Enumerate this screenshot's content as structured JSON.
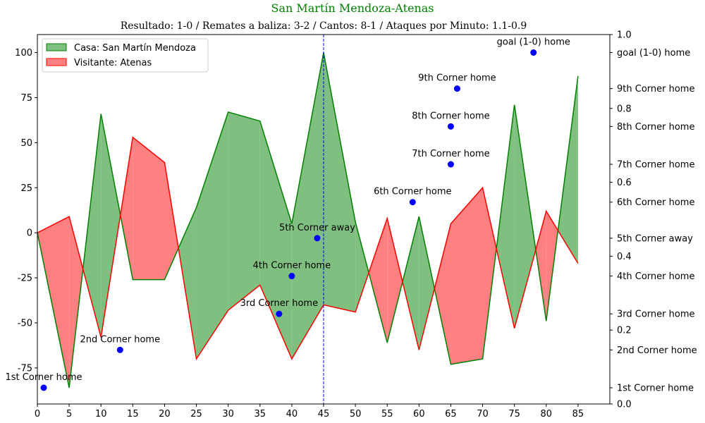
{
  "chart_data": {
    "type": "area",
    "title": "San Martín Mendoza-Atenas",
    "subtitle": "Resultado: 1-0 / Remates a baliza: 3-2 / Cantos: 8-1 / Ataques por Minuto: 1.1-0.9",
    "title_color": "#008000",
    "xlim": [
      0,
      90
    ],
    "ylim": [
      -95,
      110
    ],
    "x_ticks": [
      0,
      5,
      10,
      15,
      20,
      25,
      30,
      35,
      40,
      45,
      50,
      55,
      60,
      65,
      70,
      75,
      80,
      85
    ],
    "y_ticks": [
      -75,
      -50,
      -25,
      0,
      25,
      50,
      75,
      100
    ],
    "right_numeric_ticks": [
      "0.0",
      "0.2",
      "0.4",
      "0.6",
      "0.8",
      "1.0"
    ],
    "x": [
      0,
      5,
      10,
      15,
      20,
      25,
      30,
      35,
      40,
      45,
      50,
      55,
      60,
      65,
      70,
      75,
      80,
      85
    ],
    "series": [
      {
        "name": "Casa: San Martín Mendoza",
        "color": "#008000",
        "fill": "#7fbf7f",
        "values": [
          0,
          -86,
          66,
          -26,
          -26,
          14,
          67,
          62,
          5,
          100,
          6,
          -61,
          9,
          -73,
          -70,
          71,
          -49,
          87
        ]
      },
      {
        "name": "Visitante: Atenas",
        "color": "#ff0000",
        "fill": "#ff8080",
        "values": [
          0,
          9,
          -58,
          53,
          39,
          -70,
          -43,
          -29,
          -70,
          -40,
          -44,
          8,
          -65,
          5,
          25,
          -53,
          12,
          -17
        ]
      }
    ],
    "halftime_line": {
      "x": 45,
      "color": "#0000ff"
    },
    "events": [
      {
        "x": 1,
        "y": -86,
        "label": "1st Corner home"
      },
      {
        "x": 13,
        "y": -65,
        "label": "2nd Corner home"
      },
      {
        "x": 38,
        "y": -45,
        "label": "3rd Corner home"
      },
      {
        "x": 40,
        "y": -24,
        "label": "4th Corner home"
      },
      {
        "x": 44,
        "y": -3,
        "label": "5th Corner away"
      },
      {
        "x": 59,
        "y": 17,
        "label": "6th Corner home"
      },
      {
        "x": 65,
        "y": 38,
        "label": "7th Corner home"
      },
      {
        "x": 65,
        "y": 59,
        "label": "8th Corner home"
      },
      {
        "x": 66,
        "y": 80,
        "label": "9th Corner home"
      },
      {
        "x": 78,
        "y": 100,
        "label": "goal (1-0) home"
      }
    ],
    "event_color": "#0000ff",
    "legend": "upper-left",
    "grid": false
  }
}
